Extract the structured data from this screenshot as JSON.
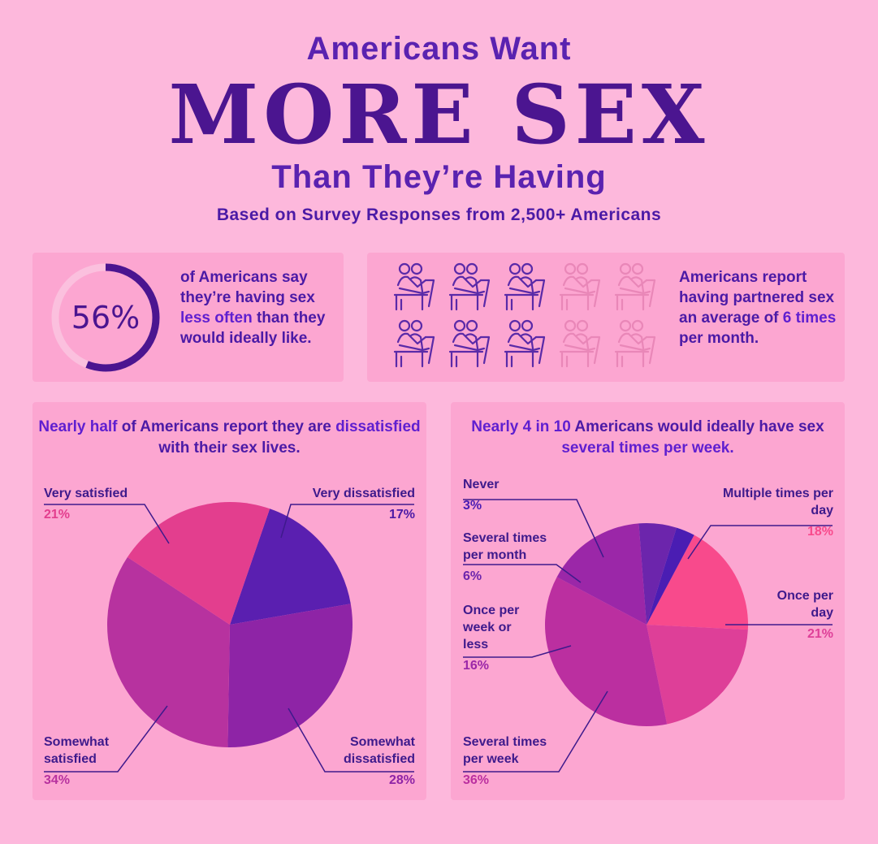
{
  "header": {
    "line1": "Americans Want",
    "line2": "MORE SEX",
    "line3": "Than They’re Having",
    "subtitle": "Based on Survey Responses from 2,500+ Americans"
  },
  "stat_less_often": {
    "percent_label": "56%",
    "percent_value": 56,
    "text_before": "of Americans say they’re having sex ",
    "text_highlight": "less often",
    "text_after": " than they would ideally like."
  },
  "stat_partnered": {
    "icons_total": 10,
    "icons_filled": 6,
    "text_before": "Americans report having partnered sex an average of ",
    "text_highlight": "6 times",
    "text_after": " per month."
  },
  "colors": {
    "background": "#fdb8dc",
    "card": "#fca6d1",
    "dark_purple": "#4b1590",
    "icon_filled": "#5a2aa8",
    "icon_faded": "#e987b8",
    "ring_track": "#fbc0de"
  },
  "chart_data": [
    {
      "type": "pie",
      "title_parts": [
        {
          "text": "Nearly half",
          "hl": true
        },
        {
          "text": " of Americans report they are ",
          "hl": false
        },
        {
          "text": "dissatisfied",
          "hl": true
        },
        {
          "text": " with their sex lives.",
          "hl": false
        }
      ],
      "slices": [
        {
          "label": "Very dissatisfied",
          "value": 17,
          "value_label": "17%",
          "color": "#5a1fb0",
          "value_color": "#4b1aa6"
        },
        {
          "label": "Somewhat dissatisfied",
          "value": 28,
          "value_label": "28%",
          "color": "#8e24a6",
          "value_color": "#8e24a6"
        },
        {
          "label": "Somewhat satisfied",
          "value": 34,
          "value_label": "34%",
          "color": "#b7329f",
          "value_color": "#b7329f"
        },
        {
          "label": "Very satisfied",
          "value": 21,
          "value_label": "21%",
          "color": "#e33e8e",
          "value_color": "#e33e8e"
        }
      ]
    },
    {
      "type": "pie",
      "title_parts": [
        {
          "text": "Nearly 4 in 10",
          "hl": true
        },
        {
          "text": " Americans would ideally have sex ",
          "hl": false
        },
        {
          "text": "several times per week.",
          "hl": true
        }
      ],
      "slices": [
        {
          "label": "Multiple times per day",
          "value": 18,
          "value_label": "18%",
          "color": "#f84a8c",
          "value_color": "#f84a8c"
        },
        {
          "label": "Once per day",
          "value": 21,
          "value_label": "21%",
          "color": "#de3f98",
          "value_color": "#de3f98"
        },
        {
          "label": "Several times per week",
          "value": 36,
          "value_label": "36%",
          "color": "#bb2fa0",
          "value_color": "#bb2fa0"
        },
        {
          "label": "Once per week or less",
          "value": 16,
          "value_label": "16%",
          "color": "#9b27a8",
          "value_color": "#9b27a8"
        },
        {
          "label": "Several times per month",
          "value": 6,
          "value_label": "6%",
          "color": "#6c25ac",
          "value_color": "#6c25ac"
        },
        {
          "label": "Never",
          "value": 3,
          "value_label": "3%",
          "color": "#4a1db3",
          "value_color": "#4a1db3"
        }
      ]
    }
  ]
}
